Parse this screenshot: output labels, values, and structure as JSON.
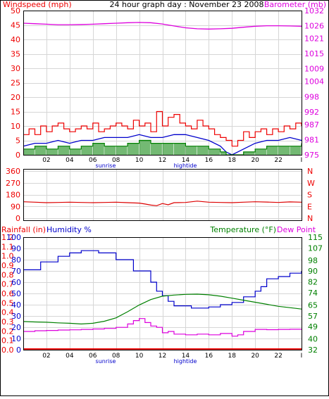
{
  "header": {
    "title": "24 hour graph day : November 23 2008",
    "left_label": "Windspeed (mph)",
    "right_label": "Barometer (mb)"
  },
  "colors": {
    "wind_gust": "#ee0000",
    "wind_avg": "#0000cc",
    "wind_low": "#008000",
    "barometer": "#dd00dd",
    "wind_dir": "#dd0000",
    "humidity": "#0000cc",
    "temperature": "#008000",
    "dew_point": "#dd00dd",
    "rainfall": "#ee0000",
    "grid": "#d6d6d6",
    "frame": "#000000"
  },
  "time_axis": {
    "ticks": [
      "02",
      "04",
      "06",
      "08",
      "10",
      "12",
      "14",
      "16",
      "18",
      "20",
      "22",
      "I"
    ],
    "sunrise_label": "sunrise",
    "hightide_label": "hightide"
  },
  "wind_direction": {
    "left_ticks": [
      "360",
      "270",
      "180",
      "90",
      "0"
    ],
    "right_labels": [
      "N",
      "W",
      "S",
      "E",
      "N"
    ]
  },
  "bottom_panel": {
    "rainfall_label": "Rainfall (in)",
    "humidity_label": "Humidity %",
    "temperature_label": "Temperature (°F)",
    "dew_point_label": "Dew Point",
    "rain_ticks": [
      "1.2",
      "1.1",
      "1.0",
      "0.9",
      "0.8",
      "0.7",
      "0.6",
      "0.5",
      "0.4",
      "0.3",
      "0.2",
      "0.1",
      "0.0"
    ],
    "humidity_ticks": [
      "100",
      "90",
      "80",
      "70",
      "60",
      "50",
      "40",
      "30",
      "20",
      "10",
      "0"
    ],
    "temp_ticks": [
      "115",
      "107",
      "98",
      "90",
      "82",
      "74",
      "65",
      "57",
      "49",
      "40",
      "32"
    ]
  },
  "chart_data": [
    {
      "type": "line",
      "title": "24 hour graph day : November 23 2008",
      "ylabel": "Windspeed (mph)",
      "ylabel_right": "Barometer (mb)",
      "x_unit": "hour",
      "xlim": [
        0,
        24
      ],
      "ylim": [
        0,
        50
      ],
      "y_ticks": [
        0,
        5,
        10,
        15,
        20,
        25,
        30,
        35,
        40,
        45,
        50
      ],
      "ylim_right": [
        975,
        1032
      ],
      "y_ticks_right": [
        975,
        981,
        987,
        992,
        998,
        1004,
        1009,
        1015,
        1021,
        1026,
        1032
      ],
      "series": [
        {
          "name": "Windspeed (mph)",
          "axis": "left",
          "x": [
            0,
            0.5,
            1,
            1.5,
            2,
            2.5,
            3,
            3.5,
            4,
            4.5,
            5,
            5.5,
            6,
            6.5,
            7,
            7.5,
            8,
            8.5,
            9,
            9.5,
            10,
            10.5,
            11,
            11.5,
            12,
            12.5,
            13,
            13.5,
            14,
            14.5,
            15,
            15.5,
            16,
            16.5,
            17,
            17.5,
            18,
            18.5,
            19,
            19.5,
            20,
            20.5,
            21,
            21.5,
            22,
            22.5,
            23,
            23.5,
            24
          ],
          "values": [
            7,
            9,
            7,
            10,
            8,
            10,
            11,
            9,
            8,
            9,
            10,
            9,
            11,
            8,
            9,
            10,
            11,
            10,
            9,
            12,
            10,
            11,
            8,
            15,
            10,
            13,
            14,
            11,
            10,
            9,
            12,
            10,
            9,
            7,
            6,
            5,
            3,
            5,
            8,
            6,
            8,
            9,
            7,
            9,
            8,
            10,
            9,
            11,
            10
          ]
        },
        {
          "name": "Average windspeed",
          "axis": "left",
          "x": [
            0,
            1,
            2,
            3,
            4,
            5,
            6,
            7,
            8,
            9,
            10,
            11,
            12,
            13,
            14,
            15,
            16,
            17,
            17.5,
            18,
            18.5,
            19,
            20,
            21,
            22,
            23,
            24
          ],
          "values": [
            3,
            4,
            4,
            5,
            4,
            5,
            5,
            6,
            6,
            6,
            7,
            6,
            6,
            7,
            7,
            6,
            5,
            3,
            1,
            0,
            1,
            2,
            4,
            5,
            5,
            6,
            5
          ]
        },
        {
          "name": "Minimum windspeed",
          "axis": "left",
          "x": [
            0,
            1,
            2,
            3,
            4,
            5,
            6,
            7,
            8,
            9,
            10,
            11,
            12,
            13,
            14,
            15,
            16,
            17,
            17.5,
            18,
            18.5,
            19,
            20,
            21,
            22,
            23,
            24
          ],
          "values": [
            2,
            3,
            2,
            3,
            2,
            3,
            4,
            3,
            3,
            4,
            5,
            4,
            4,
            4,
            3,
            3,
            2,
            1,
            0,
            0,
            0,
            1,
            2,
            3,
            3,
            3,
            4
          ]
        },
        {
          "name": "Barometer (mb)",
          "axis": "right",
          "x": [
            0,
            1,
            2,
            3,
            4,
            5,
            6,
            7,
            8,
            9,
            10,
            11,
            12,
            13,
            14,
            15,
            16,
            17,
            18,
            19,
            20,
            21,
            22,
            23,
            24
          ],
          "values": [
            1027,
            1026.8,
            1026.6,
            1026.4,
            1026.4,
            1026.5,
            1026.6,
            1026.8,
            1027,
            1027.2,
            1027.3,
            1027.2,
            1026.7,
            1025.9,
            1025.2,
            1024.8,
            1024.7,
            1024.8,
            1025,
            1025.4,
            1025.8,
            1026,
            1026,
            1025.9,
            1025.8
          ]
        }
      ]
    },
    {
      "type": "line",
      "ylabel": "Wind direction",
      "x_unit": "hour",
      "xlim": [
        0,
        24
      ],
      "ylim": [
        0,
        360
      ],
      "y_ticks": [
        0,
        90,
        180,
        270,
        360
      ],
      "series": [
        {
          "x": [
            0,
            1,
            2,
            3,
            4,
            5,
            6,
            7,
            8,
            9,
            10,
            10.5,
            11,
            11.5,
            12,
            12.5,
            13,
            14,
            15,
            16,
            17,
            18,
            19,
            20,
            21,
            22,
            23,
            24
          ],
          "values": [
            125,
            122,
            118,
            120,
            122,
            120,
            118,
            120,
            122,
            118,
            115,
            108,
            100,
            95,
            112,
            102,
            118,
            120,
            130,
            122,
            120,
            118,
            122,
            125,
            123,
            120,
            124,
            122
          ]
        }
      ]
    },
    {
      "type": "line",
      "ylabel": "Humidity %",
      "ylabel_right": "Temperature (°F)",
      "x_unit": "hour",
      "xlim": [
        0,
        24
      ],
      "ylim": [
        0,
        100
      ],
      "y_ticks": [
        0,
        10,
        20,
        30,
        40,
        50,
        60,
        70,
        80,
        90,
        100
      ],
      "ylim_rain": [
        0,
        1.2
      ],
      "y_ticks_rain": [
        0.0,
        0.1,
        0.2,
        0.3,
        0.4,
        0.5,
        0.6,
        0.7,
        0.8,
        0.9,
        1.0,
        1.1,
        1.2
      ],
      "ylim_right": [
        32,
        115
      ],
      "y_ticks_right": [
        32,
        40,
        49,
        57,
        65,
        74,
        82,
        90,
        98,
        107,
        115
      ],
      "series": [
        {
          "name": "Humidity %",
          "axis": "left",
          "step": true,
          "x": [
            0,
            1.5,
            3,
            4,
            5,
            6.5,
            8,
            9.5,
            11,
            11.5,
            12,
            12.5,
            13,
            14.5,
            16,
            17,
            18,
            19,
            20,
            20.5,
            21,
            22,
            23,
            24
          ],
          "values": [
            71,
            78,
            83,
            86,
            88,
            86,
            80,
            70,
            60,
            52,
            48,
            43,
            39,
            37,
            38,
            40,
            42,
            47,
            52,
            56,
            63,
            65,
            68,
            70
          ]
        },
        {
          "name": "Temperature (°F)",
          "axis": "right",
          "x": [
            0,
            1,
            2,
            3,
            4,
            5,
            6,
            7,
            8,
            9,
            10,
            11,
            12,
            13,
            14,
            15,
            16,
            17,
            18,
            19,
            20,
            21,
            22,
            23,
            24
          ],
          "values": [
            52.8,
            52.5,
            52.3,
            51.8,
            51.5,
            51,
            51.5,
            53,
            55.5,
            60,
            65,
            69,
            71.5,
            72.3,
            72.8,
            73,
            72.5,
            71.5,
            70,
            68.5,
            67,
            65.5,
            64,
            63,
            62
          ]
        },
        {
          "name": "Dew Point",
          "axis": "right",
          "step": true,
          "x": [
            0,
            1,
            2,
            3,
            4,
            5,
            6,
            7,
            8,
            9,
            9.5,
            10,
            10.5,
            11,
            11.5,
            12,
            12.5,
            13,
            14,
            15,
            16,
            17,
            18,
            18.5,
            19,
            20,
            21,
            22,
            23,
            24
          ],
          "values": [
            45.5,
            46,
            46.2,
            46.5,
            46.7,
            47,
            47.3,
            47.7,
            48.5,
            51,
            53.5,
            55,
            52,
            49.5,
            48.5,
            44.5,
            45.5,
            43.5,
            43,
            43.5,
            43,
            44,
            42,
            43,
            45.5,
            47,
            46.8,
            47,
            47.1,
            47.2
          ]
        },
        {
          "name": "Rainfall (in)",
          "axis": "rain",
          "x": [
            0,
            24
          ],
          "values": [
            0,
            0
          ]
        }
      ]
    }
  ]
}
